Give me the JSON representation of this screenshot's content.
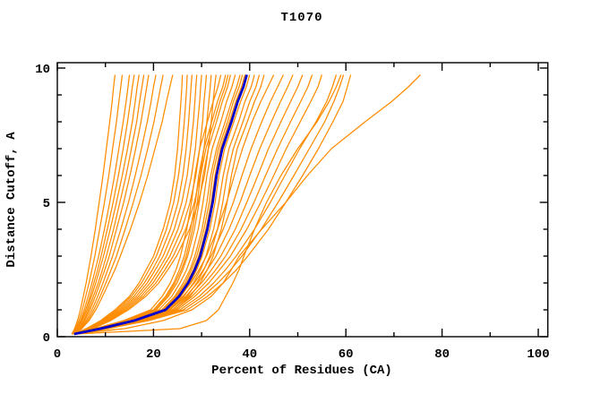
{
  "title": "T1070",
  "colors": {
    "background": "#ffffff",
    "frame": "#000000",
    "model_line": "#ff8c00",
    "median_line": "#0000cd",
    "text": "#000000"
  },
  "chart_data": {
    "type": "line",
    "title": "T1070",
    "xlabel": "Percent of Residues (CA)",
    "ylabel": "Distance Cutoff, A",
    "xlim": [
      0,
      102
    ],
    "ylim": [
      0,
      10.2
    ],
    "x_ticks": {
      "minor_step": 10,
      "major_step": 20,
      "max": 100,
      "labels": [
        "0",
        "20",
        "40",
        "60",
        "80",
        "100"
      ],
      "label_values": [
        0,
        20,
        40,
        60,
        80,
        100
      ]
    },
    "y_ticks": {
      "minor_step": 1,
      "major_step": 5,
      "max": 10,
      "labels": [
        "0",
        "5",
        "10"
      ],
      "label_values": [
        0,
        5,
        10
      ]
    },
    "grid": "off",
    "legend": "none",
    "y_grid": [
      0.1,
      0.3,
      0.6,
      1,
      1.5,
      2,
      2.5,
      3,
      4,
      5,
      6,
      7,
      8,
      8.75,
      9.3,
      9.75
    ],
    "model_lines": [
      [
        3,
        3.6,
        4.2,
        4.8,
        5.4,
        6,
        6.5,
        7,
        7.9,
        8.7,
        9.5,
        10.2,
        10.9,
        11.4,
        11.7,
        12
      ],
      [
        3,
        3.8,
        4.5,
        5.2,
        5.9,
        6.6,
        7.2,
        7.8,
        8.8,
        9.8,
        10.7,
        11.5,
        12.3,
        12.8,
        13.2,
        13.5
      ],
      [
        3,
        4,
        4.8,
        5.6,
        6.4,
        7.2,
        7.9,
        8.6,
        9.8,
        10.9,
        11.9,
        12.8,
        13.7,
        14.3,
        14.7,
        15
      ],
      [
        3.2,
        4.1,
        5,
        5.9,
        6.8,
        7.6,
        8.4,
        9.1,
        10.4,
        11.6,
        12.7,
        13.7,
        14.6,
        15.2,
        15.6,
        16
      ],
      [
        3.2,
        4.2,
        5.2,
        6.2,
        7.1,
        8,
        8.8,
        9.6,
        11,
        12.3,
        13.5,
        14.6,
        15.6,
        16.2,
        16.6,
        17
      ],
      [
        3.4,
        4.4,
        5.5,
        6.5,
        7.5,
        8.5,
        9.4,
        10.2,
        11.7,
        13,
        14.3,
        15.4,
        16.5,
        17.1,
        17.6,
        18
      ],
      [
        3.4,
        4.6,
        5.7,
        6.8,
        7.9,
        8.9,
        9.9,
        10.8,
        12.3,
        13.8,
        15.1,
        16.3,
        17.4,
        18.1,
        18.6,
        19
      ],
      [
        3.5,
        4.7,
        6,
        7.2,
        8.4,
        9.5,
        10.5,
        11.5,
        13.2,
        14.8,
        16.2,
        17.5,
        18.7,
        19.5,
        20,
        20.5
      ],
      [
        3.5,
        4.9,
        6.3,
        7.6,
        8.9,
        10.1,
        11.2,
        12.3,
        14.1,
        15.8,
        17.4,
        18.8,
        20.1,
        20.9,
        21.5,
        22
      ],
      [
        3.6,
        5.1,
        6.6,
        8,
        9.4,
        10.7,
        12,
        13.1,
        15.2,
        17.1,
        18.8,
        20.3,
        21.8,
        22.7,
        23.4,
        24
      ],
      [
        3.5,
        6,
        9,
        12,
        15,
        17,
        18.5,
        20,
        22,
        23.5,
        24.4,
        25,
        25.4,
        25.7,
        25.9,
        26
      ],
      [
        3.5,
        6.2,
        9.3,
        12.4,
        15.4,
        17.5,
        19.1,
        20.6,
        22.7,
        24.2,
        25.2,
        25.9,
        26.4,
        26.7,
        26.9,
        27
      ],
      [
        3.6,
        6.4,
        9.6,
        12.8,
        15.9,
        18.1,
        19.8,
        21.3,
        23.5,
        25.1,
        26.1,
        26.8,
        27.3,
        27.6,
        27.8,
        28
      ],
      [
        3.6,
        6.6,
        9.9,
        13.2,
        16.4,
        18.7,
        20.4,
        22,
        24.3,
        25.9,
        27,
        27.7,
        28.3,
        28.6,
        28.8,
        29
      ],
      [
        3.7,
        6.8,
        10.2,
        13.6,
        16.9,
        19.3,
        21.1,
        22.7,
        25.1,
        26.8,
        27.9,
        28.7,
        29.2,
        29.6,
        29.8,
        30
      ],
      [
        3.7,
        7,
        10.5,
        14,
        17.4,
        19.9,
        21.7,
        23.4,
        25.9,
        27.6,
        28.8,
        29.6,
        30.2,
        30.5,
        30.8,
        31
      ],
      [
        3.8,
        7.2,
        10.8,
        14.4,
        17.9,
        20.5,
        22.4,
        24.1,
        26.7,
        28.5,
        29.7,
        30.5,
        31.1,
        31.5,
        31.8,
        32
      ],
      [
        3.8,
        7.4,
        11.1,
        14.8,
        18.4,
        21.1,
        23,
        24.8,
        27.5,
        29.3,
        30.6,
        31.4,
        32,
        32.4,
        32.7,
        33
      ],
      [
        3,
        7.8,
        13.8,
        19.4,
        21.8,
        23.5,
        24.7,
        25.6,
        26.9,
        27.9,
        28.6,
        29.6,
        31.2,
        32.4,
        33.4,
        34
      ],
      [
        3.1,
        8,
        14.2,
        20,
        22.5,
        24.2,
        25.4,
        26.4,
        27.7,
        28.7,
        29.4,
        30.5,
        32.1,
        33.3,
        34.4,
        35
      ],
      [
        3.2,
        8.1,
        14.4,
        20.3,
        22.8,
        24.5,
        25.8,
        26.8,
        28.1,
        29.1,
        29.8,
        30.9,
        32.6,
        33.8,
        34.9,
        35.5
      ],
      [
        3.2,
        8.2,
        14.6,
        20.6,
        23.1,
        24.9,
        26.1,
        27.1,
        28.5,
        29.5,
        30.3,
        31.4,
        33.1,
        34.3,
        35.4,
        36
      ],
      [
        3.3,
        8.5,
        15,
        21.1,
        23.8,
        25.5,
        26.9,
        27.9,
        29.3,
        30.3,
        31.1,
        32.2,
        34,
        35.2,
        36.3,
        37
      ],
      [
        3.4,
        8.7,
        15.4,
        21.7,
        24.4,
        26.2,
        27.6,
        28.6,
        30.1,
        31.1,
        31.9,
        33.1,
        34.9,
        36.2,
        37.3,
        38
      ],
      [
        3.4,
        8.8,
        15.6,
        22,
        24.7,
        26.6,
        27.9,
        29,
        30.5,
        31.6,
        32.3,
        33.5,
        35.4,
        36.6,
        37.8,
        38.5
      ],
      [
        3.4,
        8.9,
        15.8,
        22.3,
        25,
        26.9,
        28.3,
        29.4,
        30.9,
        32,
        32.8,
        33.9,
        35.8,
        37.1,
        38.3,
        39
      ],
      [
        3.5,
        9.1,
        16.2,
        22.8,
        25.7,
        27.6,
        29,
        30.1,
        31.7,
        32.8,
        33.6,
        34.8,
        36.7,
        38.1,
        39.3,
        40
      ],
      [
        3.6,
        9.4,
        16.6,
        23.4,
        26.3,
        28.3,
        29.8,
        30.9,
        32.5,
        33.6,
        34.5,
        35.7,
        37.7,
        39,
        40.3,
        41
      ],
      [
        3.7,
        9.6,
        17,
        24,
        27,
        29,
        30.5,
        31.7,
        33.3,
        34.4,
        35.3,
        36.6,
        38.6,
        40,
        41.3,
        42
      ],
      [
        3.7,
        9.8,
        17.4,
        24.5,
        27.6,
        29.7,
        31.2,
        32.4,
        34.1,
        35.3,
        36.2,
        37.4,
        39.5,
        41,
        42.3,
        43
      ],
      [
        3.5,
        9,
        16,
        22.5,
        25.5,
        27.8,
        29.5,
        31,
        33.3,
        35.2,
        36.8,
        38.5,
        40.5,
        42.3,
        43.8,
        45
      ],
      [
        3.6,
        9.2,
        16.3,
        23,
        26.1,
        28.5,
        30.4,
        32,
        34.5,
        36.6,
        38.4,
        40.3,
        42.5,
        44.3,
        45.8,
        47
      ],
      [
        3.6,
        9.4,
        16.6,
        23.4,
        26.7,
        29.2,
        31.2,
        33,
        35.7,
        38,
        40,
        42.1,
        44.5,
        46.4,
        47.9,
        49
      ],
      [
        3.7,
        9.6,
        17,
        23.9,
        27.3,
        30,
        32.1,
        34,
        37,
        39.4,
        41.7,
        43.9,
        46.5,
        48.5,
        50,
        51
      ],
      [
        3.7,
        9.8,
        17.3,
        24.4,
        28,
        30.7,
        33,
        35,
        38.2,
        40.9,
        43.3,
        45.8,
        48.5,
        50.6,
        52.1,
        53
      ],
      [
        3.8,
        10,
        17.6,
        24.9,
        28.6,
        31.5,
        33.8,
        36,
        39.4,
        42.3,
        45,
        47.6,
        50.5,
        52.7,
        54.2,
        55
      ],
      [
        3.8,
        10,
        18,
        25.5,
        29.5,
        32.5,
        35,
        37.2,
        41,
        44.3,
        47.3,
        50.4,
        53.8,
        56,
        57.2,
        58
      ],
      [
        3.9,
        10.3,
        18.4,
        26.2,
        30.3,
        33.4,
        36.1,
        38.4,
        42.4,
        45.9,
        49.2,
        52.4,
        55.6,
        57.5,
        58.7,
        59.5
      ],
      [
        4,
        10.6,
        19,
        27,
        31.2,
        34.5,
        37.3,
        39.6,
        43.9,
        47.5,
        51,
        54.3,
        57.3,
        59.4,
        60.3,
        61
      ],
      [
        3.5,
        14,
        22,
        28,
        32,
        34.5,
        36.2,
        37.8,
        42.5,
        47.5,
        52,
        57,
        64,
        69.5,
        73,
        75.5
      ],
      [
        4,
        25.5,
        31,
        33.5,
        35,
        36.5,
        37.8,
        38.8,
        41,
        43.5,
        46.5,
        50,
        54,
        56.5,
        58,
        59
      ]
    ],
    "median_line": [
      3.5,
      9,
      16,
      22.5,
      25.3,
      27.2,
      28.6,
      29.7,
      31.2,
      32.3,
      33.1,
      34.3,
      36.2,
      37.5,
      38.7,
      39.4
    ]
  }
}
